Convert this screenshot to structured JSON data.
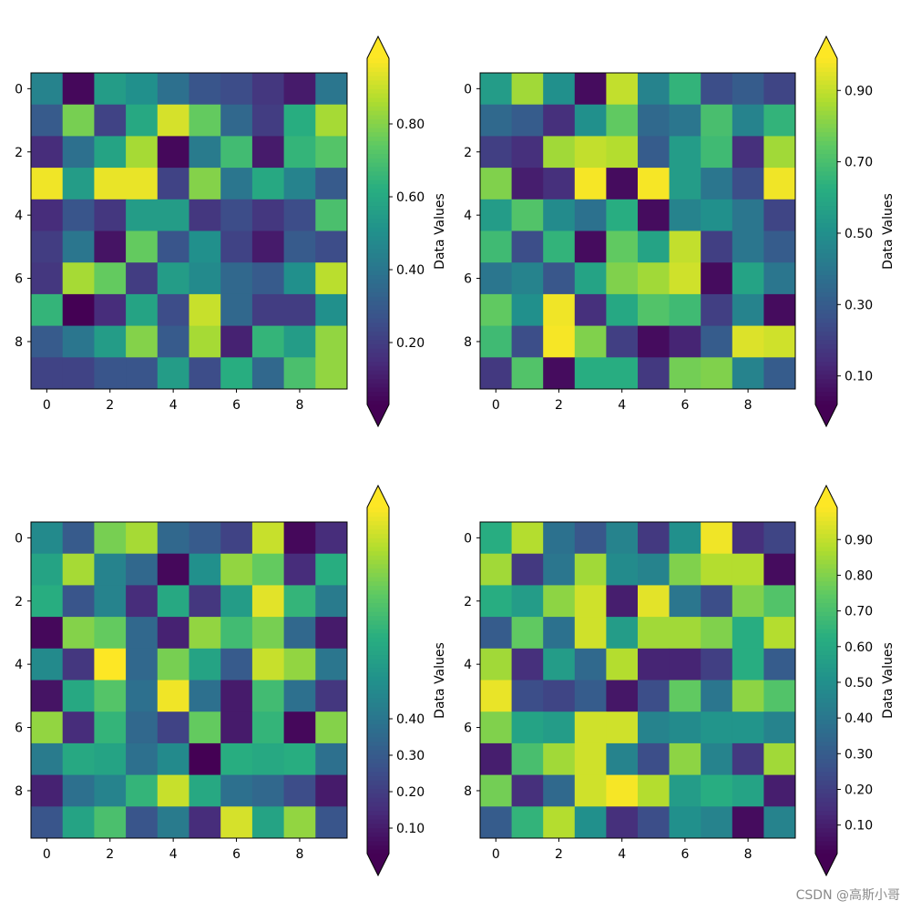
{
  "watermark": "CSDN @高斯小哥",
  "chart_data": [
    {
      "type": "heatmap",
      "colormap": "viridis",
      "colorbar_label": "Data Values",
      "colorbar_extend": "both",
      "colorbar_range": [
        0.03,
        0.98
      ],
      "colorbar_ticks": [
        0.2,
        0.4,
        0.6,
        0.8
      ],
      "colorbar_tick_labels": [
        "0.20",
        "0.40",
        "0.60",
        "0.80"
      ],
      "x_ticks": [
        0,
        2,
        4,
        6,
        8
      ],
      "y_ticks": [
        0,
        2,
        4,
        6,
        8
      ],
      "values": [
        [
          0.45,
          0.05,
          0.55,
          0.5,
          0.38,
          0.28,
          0.25,
          0.18,
          0.1,
          0.4
        ],
        [
          0.3,
          0.78,
          0.22,
          0.6,
          0.92,
          0.75,
          0.35,
          0.2,
          0.62,
          0.85
        ],
        [
          0.15,
          0.38,
          0.58,
          0.85,
          0.05,
          0.42,
          0.68,
          0.1,
          0.65,
          0.72
        ],
        [
          0.96,
          0.55,
          0.95,
          0.95,
          0.22,
          0.8,
          0.4,
          0.6,
          0.45,
          0.3
        ],
        [
          0.15,
          0.28,
          0.18,
          0.55,
          0.55,
          0.18,
          0.25,
          0.18,
          0.25,
          0.7
        ],
        [
          0.2,
          0.4,
          0.08,
          0.75,
          0.28,
          0.5,
          0.22,
          0.1,
          0.3,
          0.25
        ],
        [
          0.18,
          0.85,
          0.75,
          0.2,
          0.55,
          0.48,
          0.35,
          0.3,
          0.5,
          0.88
        ],
        [
          0.65,
          0.03,
          0.15,
          0.58,
          0.25,
          0.9,
          0.35,
          0.2,
          0.2,
          0.5
        ],
        [
          0.3,
          0.4,
          0.55,
          0.8,
          0.3,
          0.85,
          0.12,
          0.65,
          0.55,
          0.82
        ],
        [
          0.22,
          0.22,
          0.28,
          0.28,
          0.55,
          0.25,
          0.62,
          0.35,
          0.7,
          0.82
        ]
      ]
    },
    {
      "type": "heatmap",
      "colormap": "viridis",
      "colorbar_label": "Data Values",
      "colorbar_extend": "both",
      "colorbar_range": [
        0.02,
        0.99
      ],
      "colorbar_ticks": [
        0.1,
        0.3,
        0.5,
        0.7,
        0.9
      ],
      "colorbar_tick_labels": [
        "0.10",
        "0.30",
        "0.50",
        "0.70",
        "0.90"
      ],
      "x_ticks": [
        0,
        2,
        4,
        6,
        8
      ],
      "y_ticks": [
        0,
        2,
        4,
        6,
        8
      ],
      "values": [
        [
          0.55,
          0.85,
          0.5,
          0.05,
          0.9,
          0.45,
          0.65,
          0.25,
          0.3,
          0.22
        ],
        [
          0.35,
          0.3,
          0.15,
          0.5,
          0.75,
          0.35,
          0.4,
          0.7,
          0.45,
          0.65
        ],
        [
          0.2,
          0.15,
          0.85,
          0.9,
          0.88,
          0.3,
          0.55,
          0.68,
          0.15,
          0.85
        ],
        [
          0.8,
          0.1,
          0.15,
          0.98,
          0.05,
          0.98,
          0.55,
          0.4,
          0.25,
          0.97
        ],
        [
          0.55,
          0.72,
          0.48,
          0.38,
          0.62,
          0.05,
          0.45,
          0.5,
          0.4,
          0.22
        ],
        [
          0.68,
          0.25,
          0.65,
          0.05,
          0.75,
          0.58,
          0.9,
          0.2,
          0.4,
          0.3
        ],
        [
          0.4,
          0.45,
          0.28,
          0.58,
          0.8,
          0.85,
          0.92,
          0.05,
          0.58,
          0.4
        ],
        [
          0.75,
          0.5,
          0.97,
          0.15,
          0.6,
          0.72,
          0.68,
          0.2,
          0.45,
          0.05
        ],
        [
          0.68,
          0.25,
          0.98,
          0.8,
          0.2,
          0.05,
          0.12,
          0.3,
          0.94,
          0.92
        ],
        [
          0.18,
          0.72,
          0.05,
          0.62,
          0.62,
          0.18,
          0.78,
          0.8,
          0.45,
          0.3
        ]
      ]
    },
    {
      "type": "heatmap",
      "colormap": "viridis",
      "colorbar_label": "Data Values",
      "colorbar_extend": "both",
      "colorbar_range": [
        0.03,
        0.98
      ],
      "colorbar_ticks": [
        0.1,
        0.2,
        0.3,
        0.4
      ],
      "colorbar_tick_labels": [
        "0.10",
        "0.20",
        "0.30",
        "0.40"
      ],
      "x_ticks": [
        0,
        2,
        4,
        6,
        8
      ],
      "y_ticks": [
        0,
        2,
        4,
        6,
        8
      ],
      "values": [
        [
          0.48,
          0.3,
          0.78,
          0.85,
          0.35,
          0.3,
          0.22,
          0.9,
          0.05,
          0.15
        ],
        [
          0.58,
          0.85,
          0.45,
          0.35,
          0.05,
          0.5,
          0.82,
          0.75,
          0.15,
          0.62
        ],
        [
          0.62,
          0.28,
          0.45,
          0.15,
          0.6,
          0.18,
          0.55,
          0.94,
          0.65,
          0.42
        ],
        [
          0.05,
          0.8,
          0.75,
          0.35,
          0.12,
          0.82,
          0.68,
          0.78,
          0.35,
          0.1
        ],
        [
          0.48,
          0.18,
          0.98,
          0.35,
          0.78,
          0.58,
          0.3,
          0.9,
          0.82,
          0.4
        ],
        [
          0.08,
          0.6,
          0.72,
          0.38,
          0.96,
          0.38,
          0.1,
          0.68,
          0.38,
          0.18
        ],
        [
          0.82,
          0.15,
          0.65,
          0.35,
          0.22,
          0.75,
          0.1,
          0.65,
          0.05,
          0.8
        ],
        [
          0.42,
          0.6,
          0.58,
          0.38,
          0.48,
          0.03,
          0.62,
          0.6,
          0.62,
          0.38
        ],
        [
          0.12,
          0.38,
          0.45,
          0.65,
          0.9,
          0.6,
          0.38,
          0.35,
          0.25,
          0.1
        ],
        [
          0.28,
          0.58,
          0.7,
          0.28,
          0.42,
          0.15,
          0.92,
          0.58,
          0.82,
          0.28
        ]
      ]
    },
    {
      "type": "heatmap",
      "colormap": "viridis",
      "colorbar_label": "Data Values",
      "colorbar_extend": "both",
      "colorbar_range": [
        0.02,
        0.99
      ],
      "colorbar_ticks": [
        0.1,
        0.2,
        0.3,
        0.4,
        0.5,
        0.6,
        0.7,
        0.8,
        0.9
      ],
      "colorbar_tick_labels": [
        "0.10",
        "0.20",
        "0.30",
        "0.40",
        "0.50",
        "0.60",
        "0.70",
        "0.80",
        "0.90"
      ],
      "x_ticks": [
        0,
        2,
        4,
        6,
        8
      ],
      "y_ticks": [
        0,
        2,
        4,
        6,
        8
      ],
      "values": [
        [
          0.62,
          0.88,
          0.38,
          0.28,
          0.45,
          0.18,
          0.5,
          0.97,
          0.15,
          0.22
        ],
        [
          0.85,
          0.18,
          0.4,
          0.85,
          0.48,
          0.45,
          0.8,
          0.88,
          0.88,
          0.05
        ],
        [
          0.62,
          0.55,
          0.82,
          0.92,
          0.1,
          0.95,
          0.4,
          0.25,
          0.8,
          0.72
        ],
        [
          0.3,
          0.75,
          0.38,
          0.92,
          0.55,
          0.85,
          0.85,
          0.8,
          0.62,
          0.88
        ],
        [
          0.85,
          0.15,
          0.55,
          0.35,
          0.88,
          0.12,
          0.12,
          0.2,
          0.62,
          0.3
        ],
        [
          0.96,
          0.25,
          0.22,
          0.3,
          0.08,
          0.25,
          0.75,
          0.4,
          0.82,
          0.72
        ],
        [
          0.8,
          0.58,
          0.55,
          0.92,
          0.92,
          0.45,
          0.48,
          0.52,
          0.52,
          0.45
        ],
        [
          0.1,
          0.7,
          0.85,
          0.92,
          0.45,
          0.25,
          0.82,
          0.45,
          0.18,
          0.85
        ],
        [
          0.78,
          0.15,
          0.35,
          0.92,
          0.98,
          0.88,
          0.55,
          0.62,
          0.58,
          0.1
        ],
        [
          0.3,
          0.65,
          0.88,
          0.5,
          0.15,
          0.25,
          0.5,
          0.45,
          0.05,
          0.45
        ]
      ]
    }
  ]
}
